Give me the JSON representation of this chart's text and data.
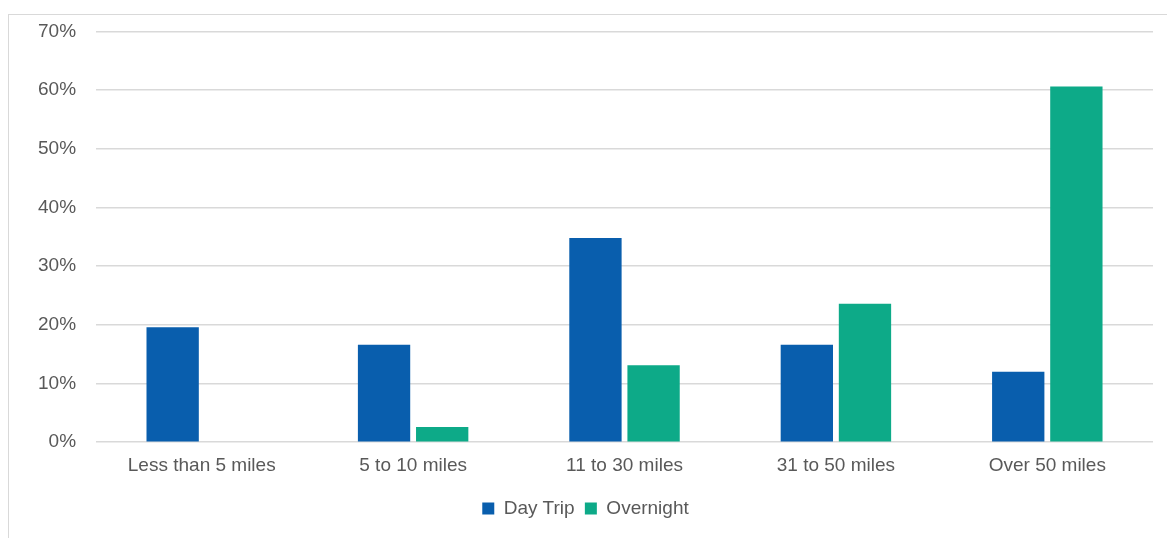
{
  "chart_data": {
    "type": "bar",
    "categories": [
      "Less than 5 miles",
      "5 to 10 miles",
      "11 to 30 miles",
      "31 to 50 miles",
      "Over 50 miles"
    ],
    "series": [
      {
        "name": "Day Trip",
        "color": "#095ead",
        "values": [
          19.6,
          16.6,
          34.8,
          16.6,
          12.0
        ]
      },
      {
        "name": "Overnight",
        "color": "#0daa88",
        "values": [
          0,
          2.6,
          13.1,
          23.6,
          60.6
        ]
      }
    ],
    "ylim": [
      0,
      70
    ],
    "yticks": [
      {
        "value": 0,
        "label": "0%"
      },
      {
        "value": 10,
        "label": "10%"
      },
      {
        "value": 20,
        "label": "20%"
      },
      {
        "value": 30,
        "label": "30%"
      },
      {
        "value": 40,
        "label": "40%"
      },
      {
        "value": 50,
        "label": "50%"
      },
      {
        "value": 60,
        "label": "60%"
      },
      {
        "value": 70,
        "label": "70%"
      }
    ],
    "grid": "y",
    "legend": "bottom"
  }
}
